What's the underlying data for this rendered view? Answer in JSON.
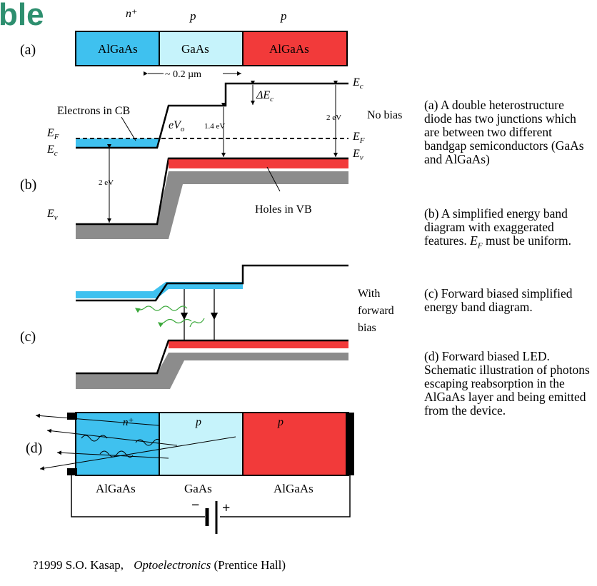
{
  "slide_title_fragment": "ble",
  "panel_labels": {
    "a": "(a)",
    "b": "(b)",
    "c": "(c)",
    "d": "(d)"
  },
  "part_a": {
    "doping": [
      "n⁺",
      "p",
      "p"
    ],
    "layers": [
      "AlGaAs",
      "GaAs",
      "AlGaAs"
    ],
    "width_label": "~ 0.2 µm",
    "colors": {
      "n_algaas": "#3fc1ef",
      "gaas": "#c6f3fb",
      "p_algaas": "#f23a3a"
    }
  },
  "part_b": {
    "electrons_label": "Electrons in CB",
    "ef_left": "E",
    "ef_left_sub": "F",
    "ec_left": "E",
    "ec_left_sub": "c",
    "ev_left": "E",
    "ev_left_sub": "v",
    "ev0_label": "eV",
    "ev0_sub": "o",
    "gap_left": "2 eV",
    "gap_mid": "1.4 eV",
    "gap_right": "2 eV",
    "delta_ec": "ΔE",
    "delta_ec_sub": "c",
    "ec_right": "E",
    "ec_right_sub": "c",
    "ef_right": "E",
    "ef_right_sub": "F",
    "ev_right": "E",
    "ev_right_sub": "v",
    "no_bias": "No bias",
    "holes_label": "Holes in VB"
  },
  "part_c": {
    "bias_label_1": "With",
    "bias_label_2": "forward",
    "bias_label_3": "bias"
  },
  "part_d": {
    "doping": [
      "n⁺",
      "p",
      "p"
    ],
    "layers": [
      "AlGaAs",
      "GaAs",
      "AlGaAs"
    ],
    "battery_minus": "−",
    "battery_plus": "+"
  },
  "descriptions": [
    "(a) A double heterostructure diode has two junctions which are between two different bandgap semiconductors (GaAs and AlGaAs)",
    "(b) A simplified energy band diagram with exaggerated features. E_F must be uniform.",
    "(c) Forward biased simplified energy band diagram.",
    "(d) Forward biased LED. Schematic illustration of photons escaping reabsorption in the AlGaAs layer and being emitted from the device."
  ],
  "citation": {
    "prefix": "?1999 S.O. Kasap,",
    "book": "Optoelectronics",
    "publisher": "(Prentice Hall)"
  }
}
